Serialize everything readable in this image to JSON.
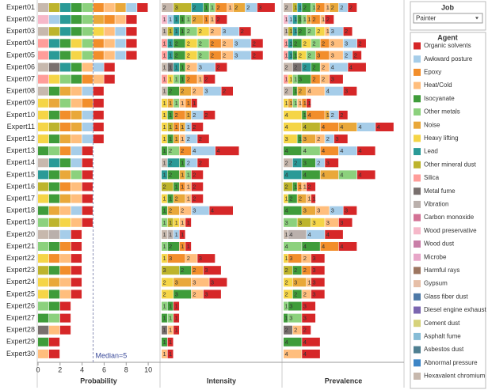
{
  "chart_data": {
    "type": "bar",
    "job_title": "Job",
    "job_value": "Painter",
    "legend_title": "Agent",
    "agents": [
      {
        "name": "Organic solvents",
        "color": "#d62728"
      },
      {
        "name": "Awkward posture",
        "color": "#a6cde9"
      },
      {
        "name": "Epoxy",
        "color": "#f28e2b"
      },
      {
        "name": "Heat/Cold",
        "color": "#ffbe7d"
      },
      {
        "name": "Isocyanate",
        "color": "#3f9c3a"
      },
      {
        "name": "Other metals",
        "color": "#8cd17d"
      },
      {
        "name": "Noise",
        "color": "#e9a83a"
      },
      {
        "name": "Heavy lifting",
        "color": "#f5d547"
      },
      {
        "name": "Lead",
        "color": "#2a9a97"
      },
      {
        "name": "Other mineral dust",
        "color": "#bdb42c"
      },
      {
        "name": "Silica",
        "color": "#ff9d9a"
      },
      {
        "name": "Metal fume",
        "color": "#79706e"
      },
      {
        "name": "Vibration",
        "color": "#bab0ac"
      },
      {
        "name": "Carbon monoxide",
        "color": "#d37295"
      },
      {
        "name": "Wood preservative",
        "color": "#f6b8c9"
      },
      {
        "name": "Wood dust",
        "color": "#c97fa8"
      },
      {
        "name": "Microbe",
        "color": "#e7a6c8"
      },
      {
        "name": "Harmful rays",
        "color": "#9d7660"
      },
      {
        "name": "Gypsum",
        "color": "#e6bfa8"
      },
      {
        "name": "Glass fiber dust",
        "color": "#4e79a7"
      },
      {
        "name": "Diesel engine exhaust",
        "color": "#7b66b0"
      },
      {
        "name": "Cement dust",
        "color": "#d6d27a"
      },
      {
        "name": "Asphalt fume",
        "color": "#86bcd6"
      },
      {
        "name": "Asbestos dust",
        "color": "#4f7f91"
      },
      {
        "name": "Abnormal pressure",
        "color": "#3d85c6"
      },
      {
        "name": "Hexavalent chromium",
        "color": "#c7b8ad"
      }
    ],
    "categories": [
      "Expert01",
      "Expert02",
      "Expert03",
      "Expert04",
      "Expert05",
      "Expert06",
      "Expert07",
      "Expert08",
      "Expert09",
      "Expert10",
      "Expert11",
      "Expert12",
      "Expert13",
      "Expert14",
      "Expert15",
      "Expert16",
      "Expert17",
      "Expert18",
      "Expert19",
      "Expert20",
      "Expert21",
      "Expert22",
      "Expert23",
      "Expert24",
      "Expert25",
      "Expert26",
      "Expert27",
      "Expert28",
      "Expert29",
      "Expert30"
    ],
    "agents_by_expert": [
      [
        "Hexavalent chromium",
        "Other mineral dust",
        "Lead",
        "Isocyanate",
        "Other metals",
        "Epoxy",
        "Heat/Cold",
        "Noise",
        "Awkward posture",
        "Organic solvents"
      ],
      [
        "Wood preservative",
        "Awkward posture",
        "Lead",
        "Isocyanate",
        "Other metals",
        "Noise",
        "Epoxy",
        "Heat/Cold",
        "Organic solvents"
      ],
      [
        "Hexavalent chromium",
        "Other mineral dust",
        "Lead",
        "Isocyanate",
        "Other metals",
        "Heavy lifting",
        "Heat/Cold",
        "Awkward posture",
        "Organic solvents"
      ],
      [
        "Silica",
        "Lead",
        "Isocyanate",
        "Heavy lifting",
        "Other metals",
        "Epoxy",
        "Heat/Cold",
        "Awkward posture",
        "Organic solvents"
      ],
      [
        "Silica",
        "Lead",
        "Isocyanate",
        "Heavy lifting",
        "Other metals",
        "Epoxy",
        "Heat/Cold",
        "Awkward posture",
        "Organic solvents"
      ],
      [
        "Hexavalent chromium",
        "Metal fume",
        "Lead",
        "Isocyanate",
        "Heat/Cold",
        "Awkward posture",
        "Organic solvents"
      ],
      [
        "Silica",
        "Heavy lifting",
        "Other metals",
        "Isocyanate",
        "Epoxy",
        "Heat/Cold",
        "Organic solvents"
      ],
      [
        "Hexavalent chromium",
        "Isocyanate",
        "Noise",
        "Heat/Cold",
        "Awkward posture",
        "Organic solvents"
      ],
      [
        "Heavy lifting",
        "Noise",
        "Other metals",
        "Heat/Cold",
        "Epoxy",
        "Organic solvents"
      ],
      [
        "Heavy lifting",
        "Isocyanate",
        "Epoxy",
        "Noise",
        "Awkward posture",
        "Organic solvents"
      ],
      [
        "Heavy lifting",
        "Other mineral dust",
        "Epoxy",
        "Noise",
        "Awkward posture",
        "Organic solvents"
      ],
      [
        "Heavy lifting",
        "Isocyanate",
        "Noise",
        "Heat/Cold",
        "Awkward posture",
        "Organic solvents"
      ],
      [
        "Isocyanate",
        "Other metals",
        "Epoxy",
        "Awkward posture",
        "Organic solvents"
      ],
      [
        "Hexavalent chromium",
        "Lead",
        "Isocyanate",
        "Awkward posture",
        "Organic solvents"
      ],
      [
        "Lead",
        "Isocyanate",
        "Noise",
        "Other metals",
        "Organic solvents"
      ],
      [
        "Other mineral dust",
        "Isocyanate",
        "Epoxy",
        "Heat/Cold",
        "Organic solvents"
      ],
      [
        "Heavy lifting",
        "Isocyanate",
        "Noise",
        "Heat/Cold",
        "Organic solvents"
      ],
      [
        "Isocyanate",
        "Noise",
        "Heat/Cold",
        "Awkward posture",
        "Organic solvents"
      ],
      [
        "Other metals",
        "Other mineral dust",
        "Heavy lifting",
        "Heat/Cold",
        "Organic solvents"
      ],
      [
        "Hexavalent chromium",
        "Vibration",
        "Awkward posture",
        "Organic solvents"
      ],
      [
        "Other metals",
        "Isocyanate",
        "Epoxy",
        "Organic solvents"
      ],
      [
        "Heavy lifting",
        "Epoxy",
        "Heat/Cold",
        "Organic solvents"
      ],
      [
        "Other mineral dust",
        "Isocyanate",
        "Epoxy",
        "Organic solvents"
      ],
      [
        "Heavy lifting",
        "Noise",
        "Heat/Cold",
        "Organic solvents"
      ],
      [
        "Heavy lifting",
        "Isocyanate",
        "Heat/Cold",
        "Organic solvents"
      ],
      [
        "Other metals",
        "Isocyanate",
        "Organic solvents"
      ],
      [
        "Isocyanate",
        "Other metals",
        "Organic solvents"
      ],
      [
        "Metal fume",
        "Heat/Cold",
        "Organic solvents"
      ],
      [
        "Isocyanate",
        "Organic solvents"
      ],
      [
        "Heat/Cold",
        "Organic solvents"
      ]
    ],
    "panels": [
      {
        "title": "Probability",
        "xlim": [
          0,
          11
        ],
        "xticks": [
          0,
          2,
          4,
          6,
          8,
          10
        ],
        "median": 5,
        "median_label": "Median=5",
        "show_labels": false,
        "values": [
          [
            1,
            1,
            1,
            1,
            1,
            1,
            1,
            1,
            1,
            1
          ],
          [
            1,
            1,
            1,
            1,
            1,
            1,
            1,
            1,
            1
          ],
          [
            1,
            1,
            1,
            1,
            1,
            1,
            1,
            1,
            1
          ],
          [
            1,
            1,
            1,
            1,
            1,
            1,
            1,
            1,
            1
          ],
          [
            1,
            1,
            1,
            1,
            1,
            1,
            1,
            1,
            1
          ],
          [
            1,
            1,
            1,
            1,
            1,
            1,
            1
          ],
          [
            1,
            1,
            1,
            1,
            1,
            1,
            1
          ],
          [
            1,
            1,
            1,
            1,
            1,
            1
          ],
          [
            1,
            1,
            1,
            1,
            1,
            1
          ],
          [
            1,
            1,
            1,
            1,
            1,
            1
          ],
          [
            1,
            1,
            1,
            1,
            1,
            1
          ],
          [
            1,
            1,
            1,
            1,
            1,
            1
          ],
          [
            1,
            1,
            1,
            1,
            1
          ],
          [
            1,
            1,
            1,
            1,
            1
          ],
          [
            1,
            1,
            1,
            1,
            1
          ],
          [
            1,
            1,
            1,
            1,
            1
          ],
          [
            1,
            1,
            1,
            1,
            1
          ],
          [
            1,
            1,
            1,
            1,
            1
          ],
          [
            1,
            1,
            1,
            1,
            1
          ],
          [
            1,
            1,
            1,
            1
          ],
          [
            1,
            1,
            1,
            1
          ],
          [
            1,
            1,
            1,
            1
          ],
          [
            1,
            1,
            1,
            1
          ],
          [
            1,
            1,
            1,
            1
          ],
          [
            1,
            1,
            1,
            1
          ],
          [
            1,
            1,
            1
          ],
          [
            1,
            1,
            1
          ],
          [
            1,
            1,
            1
          ],
          [
            1,
            1
          ],
          [
            1,
            1
          ]
        ]
      },
      {
        "title": "Intensity",
        "xlim": [
          0,
          20
        ],
        "show_labels": true,
        "values": [
          [
            2,
            3,
            2,
            1,
            1,
            2,
            1,
            2,
            2,
            3
          ],
          [
            1,
            1,
            1,
            1,
            1,
            2,
            1,
            1,
            2
          ],
          [
            1,
            1,
            1,
            1,
            2,
            2,
            2,
            3,
            2
          ],
          [
            1,
            1,
            2,
            2,
            2,
            2,
            2,
            3,
            2
          ],
          [
            1,
            1,
            2,
            2,
            2,
            2,
            2,
            3,
            2
          ],
          [
            1,
            1,
            1,
            1,
            2,
            3,
            2
          ],
          [
            1,
            1,
            1,
            1,
            2,
            1,
            2
          ],
          [
            1,
            2,
            2,
            2,
            3,
            2
          ],
          [
            1,
            1,
            1,
            1,
            1,
            1
          ],
          [
            1,
            1,
            2,
            1,
            2,
            2
          ],
          [
            1,
            1,
            1,
            1,
            1,
            2
          ],
          [
            1,
            1,
            1,
            1,
            2,
            2
          ],
          [
            1,
            2,
            2,
            4,
            4
          ],
          [
            1,
            2,
            1,
            2,
            2
          ],
          [
            1,
            2,
            1,
            1,
            2
          ],
          [
            2,
            1,
            1,
            1,
            2
          ],
          [
            1,
            1,
            2,
            1,
            2
          ],
          [
            1,
            2,
            2,
            3,
            4
          ],
          [
            1,
            1,
            1,
            1,
            1
          ],
          [
            1,
            1,
            1,
            1
          ],
          [
            1,
            2,
            1,
            1
          ],
          [
            1,
            3,
            2,
            3
          ],
          [
            3,
            2,
            2,
            3
          ],
          [
            2,
            3,
            3,
            3
          ],
          [
            2,
            3,
            2,
            3
          ],
          [
            1,
            1,
            1
          ],
          [
            1,
            1,
            1
          ],
          [
            1,
            1,
            1
          ],
          [
            1,
            1
          ],
          [
            1,
            1
          ]
        ]
      },
      {
        "title": "Prevalence",
        "xlim": [
          0,
          26
        ],
        "show_labels": true,
        "values": [
          [
            2,
            1,
            1,
            2,
            1,
            2,
            1,
            2,
            2,
            2
          ],
          [
            1,
            1,
            1,
            1,
            1,
            1,
            2,
            1,
            2
          ],
          [
            1,
            1,
            1,
            2,
            2,
            2,
            1,
            3,
            2
          ],
          [
            1,
            1,
            2,
            2,
            2,
            2,
            3,
            3,
            2
          ],
          [
            1,
            1,
            1,
            2,
            2,
            3,
            3,
            2,
            2
          ],
          [
            2,
            2,
            2,
            2,
            2,
            4,
            4
          ],
          [
            1,
            1,
            1,
            3,
            2,
            2,
            3
          ],
          [
            2,
            1,
            2,
            4,
            4,
            3
          ],
          [
            1,
            1,
            1,
            1,
            1,
            1
          ],
          [
            4,
            1,
            4,
            1,
            2,
            2
          ],
          [
            4,
            4,
            4,
            4,
            4,
            4
          ],
          [
            3,
            1,
            3,
            2,
            2,
            3
          ],
          [
            4,
            4,
            4,
            4,
            4
          ],
          [
            2,
            2,
            3,
            2,
            3
          ],
          [
            4,
            4,
            4,
            4,
            4
          ],
          [
            2,
            1,
            1,
            1,
            2
          ],
          [
            1,
            2,
            2,
            1,
            1
          ],
          [
            4,
            3,
            3,
            3,
            3
          ],
          [
            3,
            3,
            3,
            3,
            3
          ],
          [
            1,
            4,
            4,
            4
          ],
          [
            4,
            4,
            4,
            4
          ],
          [
            1,
            3,
            2,
            3
          ],
          [
            2,
            2,
            2,
            3
          ],
          [
            2,
            3,
            1,
            3
          ],
          [
            2,
            2,
            2,
            3
          ],
          [
            1,
            3,
            3
          ],
          [
            1,
            3,
            3
          ],
          [
            2,
            2,
            2
          ],
          [
            4,
            4
          ],
          [
            4,
            4
          ]
        ]
      }
    ]
  }
}
